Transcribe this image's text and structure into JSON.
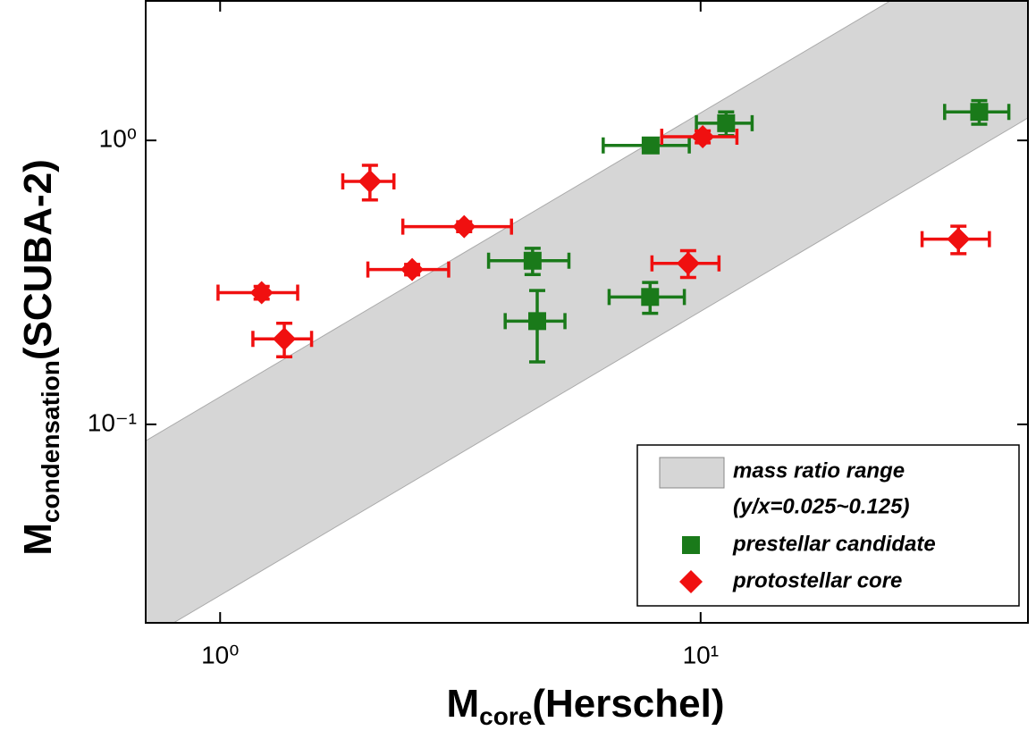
{
  "chart_data": {
    "type": "scatter",
    "x_label": {
      "main": "M",
      "sub": "core",
      "rest": "(Herschel)"
    },
    "y_label": {
      "main": "M",
      "sub": "condensation",
      "rest": "(SCUBA-2)"
    },
    "x_log": true,
    "y_log": true,
    "xlim": [
      0.7,
      48
    ],
    "ylim": [
      0.02,
      3.1
    ],
    "xticks": [
      {
        "value": 1,
        "label": "10⁰"
      },
      {
        "value": 10,
        "label": "10¹"
      }
    ],
    "yticks": [
      {
        "value": 0.1,
        "label": "10⁻¹"
      },
      {
        "value": 1,
        "label": "10⁰"
      }
    ],
    "band": {
      "label": "mass ratio range",
      "label2": "(y/x=0.025~0.125)",
      "ratios": [
        0.025,
        0.125
      ],
      "color": "#d6d6d6"
    },
    "series": [
      {
        "name": "prestellar candidate",
        "color": "#1a7a1a",
        "marker": "square",
        "x": [
          38.0,
          11.3,
          7.87,
          4.47,
          4.57,
          7.85
        ],
        "y": [
          1.26,
          1.15,
          0.96,
          0.377,
          0.231,
          0.281
        ],
        "xerr": [
          5.8,
          1.5,
          1.6,
          0.85,
          0.65,
          1.4
        ],
        "yerr": [
          0.12,
          0.11,
          0.05,
          0.04,
          0.065,
          0.035
        ]
      },
      {
        "name": "protostellar core",
        "color": "#f01010",
        "marker": "diamond",
        "x": [
          1.22,
          1.36,
          2.05,
          2.51,
          3.22,
          9.42,
          10.1,
          34.4
        ],
        "y": [
          0.291,
          0.2,
          0.717,
          0.351,
          0.497,
          0.369,
          1.03,
          0.449
        ],
        "xerr": [
          0.23,
          0.19,
          0.25,
          0.48,
          0.82,
          1.5,
          1.8,
          5.5
        ],
        "yerr": [
          0.015,
          0.027,
          0.1,
          0.015,
          0.02,
          0.04,
          0.05,
          0.05
        ]
      }
    ]
  }
}
